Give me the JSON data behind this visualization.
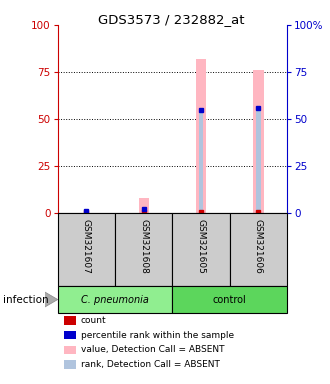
{
  "title": "GDS3573 / 232882_at",
  "samples": [
    "GSM321607",
    "GSM321608",
    "GSM321605",
    "GSM321606"
  ],
  "groups": [
    "C. pneumonia",
    "C. pneumonia",
    "control",
    "control"
  ],
  "cpneumonia_color": "#90ee90",
  "control_color": "#5cd65c",
  "group_label": "infection",
  "ylim_left": [
    0,
    100
  ],
  "ylim_right": [
    0,
    100
  ],
  "yticks": [
    0,
    25,
    50,
    75,
    100
  ],
  "left_axis_color": "#cc0000",
  "right_axis_color": "#0000cc",
  "bar_color_absent": "#ffb6c1",
  "bar_color_rank_absent": "#b0c4de",
  "dot_color_count": "#cc0000",
  "dot_color_rank": "#0000cc",
  "values_absent": [
    0,
    8,
    82,
    76
  ],
  "rank_absent": [
    0,
    0,
    55,
    56
  ],
  "count_values": [
    0,
    0,
    0,
    0
  ],
  "rank_values": [
    1,
    2,
    55,
    56
  ],
  "legend_items": [
    {
      "color": "#cc0000",
      "label": "count"
    },
    {
      "color": "#0000cc",
      "label": "percentile rank within the sample"
    },
    {
      "color": "#ffb6c1",
      "label": "value, Detection Call = ABSENT"
    },
    {
      "color": "#b0c4de",
      "label": "rank, Detection Call = ABSENT"
    }
  ]
}
